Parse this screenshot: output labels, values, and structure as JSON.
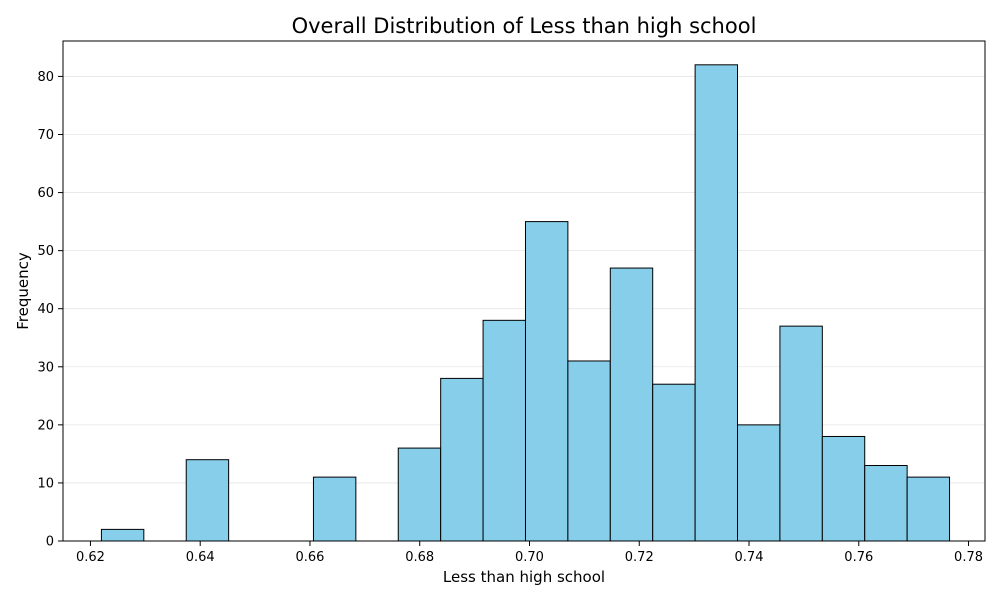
{
  "chart_data": {
    "type": "bar",
    "title": "Overall Distribution of Less than high school",
    "xlabel": "Less than high school",
    "ylabel": "Frequency",
    "xlim": [
      0.615,
      0.783
    ],
    "ylim": [
      0,
      86.1
    ],
    "x_ticks": [
      "0.62",
      "0.64",
      "0.66",
      "0.68",
      "0.70",
      "0.72",
      "0.74",
      "0.76",
      "0.78"
    ],
    "x_tick_values": [
      0.62,
      0.64,
      0.66,
      0.68,
      0.7,
      0.72,
      0.74,
      0.76,
      0.78
    ],
    "y_ticks": [
      "0",
      "10",
      "20",
      "30",
      "40",
      "50",
      "60",
      "70",
      "80"
    ],
    "y_tick_values": [
      0,
      10,
      20,
      30,
      40,
      50,
      60,
      70,
      80
    ],
    "bin_start": 0.622,
    "bin_width": 0.007727,
    "values": [
      2,
      0,
      14,
      0,
      0,
      11,
      0,
      16,
      28,
      38,
      55,
      31,
      47,
      27,
      82,
      20,
      37,
      18,
      13,
      11
    ],
    "grid": "y",
    "bar_color": "#87ceeb",
    "edge_color": "#000000"
  }
}
